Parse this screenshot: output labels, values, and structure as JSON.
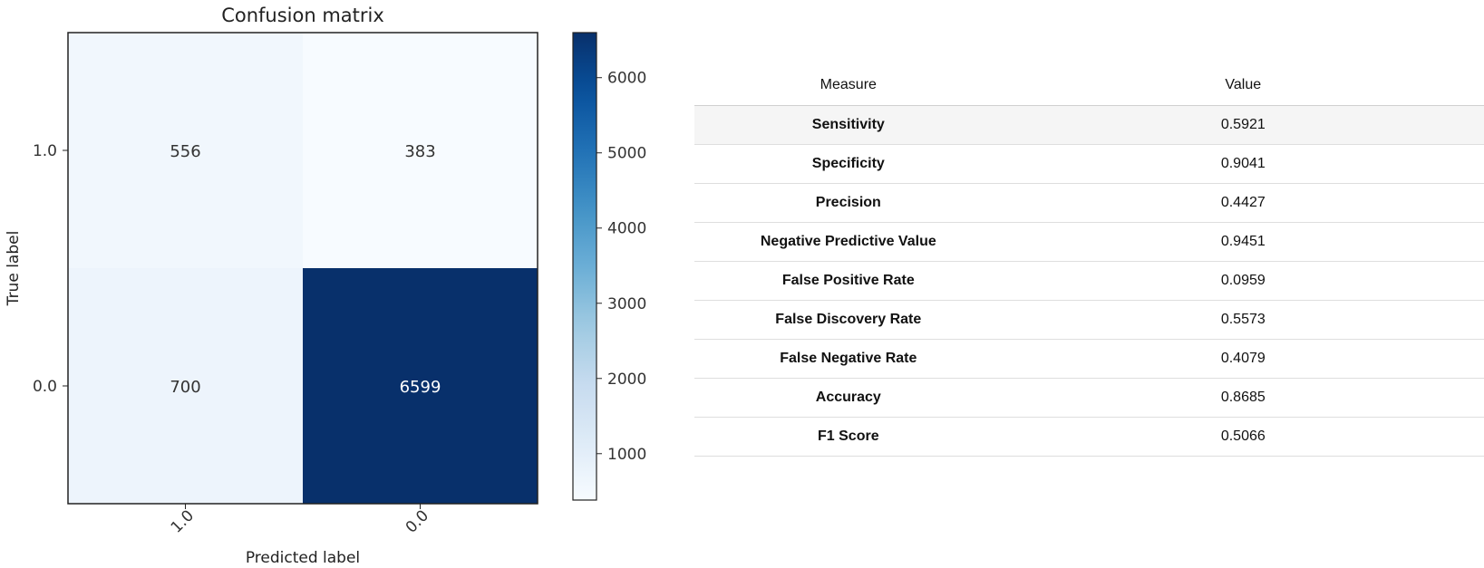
{
  "chart_data": {
    "type": "heatmap",
    "title": "Confusion matrix",
    "xlabel": "Predicted label",
    "ylabel": "True label",
    "x_categories": [
      "1.0",
      "0.0"
    ],
    "y_categories": [
      "1.0",
      "0.0"
    ],
    "values": [
      [
        556,
        383
      ],
      [
        700,
        6599
      ]
    ],
    "colorbar": {
      "min": 383,
      "max": 6599,
      "ticks": [
        1000,
        2000,
        3000,
        4000,
        5000,
        6000
      ],
      "colormap": "Blues"
    }
  },
  "metrics_table": {
    "headers": {
      "measure": "Measure",
      "value": "Value"
    },
    "rows": [
      {
        "measure": "Sensitivity",
        "value": "0.5921"
      },
      {
        "measure": "Specificity",
        "value": "0.9041"
      },
      {
        "measure": "Precision",
        "value": "0.4427"
      },
      {
        "measure": "Negative Predictive Value",
        "value": "0.9451"
      },
      {
        "measure": "False Positive Rate",
        "value": "0.0959"
      },
      {
        "measure": "False Discovery Rate",
        "value": "0.5573"
      },
      {
        "measure": "False Negative Rate",
        "value": "0.4079"
      },
      {
        "measure": "Accuracy",
        "value": "0.8685"
      },
      {
        "measure": "F1 Score",
        "value": "0.5066"
      }
    ]
  }
}
